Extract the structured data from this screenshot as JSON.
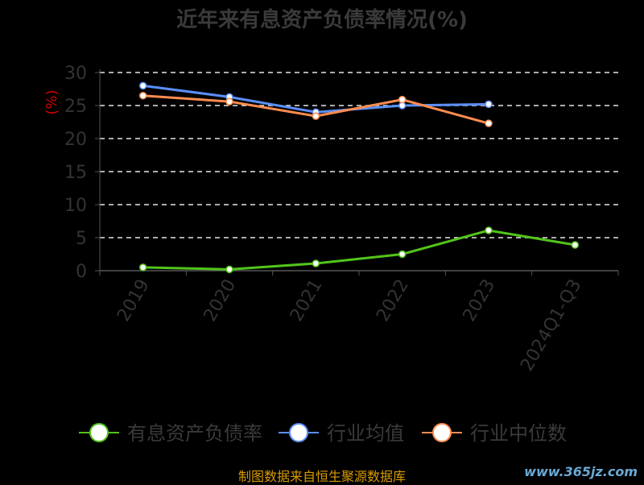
{
  "chart_data": {
    "type": "line",
    "title": "近年来有息资产负债率情况(%)",
    "ylabel": "(%)",
    "ylim": [
      0,
      30
    ],
    "yticks": [
      0,
      5,
      10,
      15,
      20,
      25,
      30
    ],
    "grid": true,
    "legend_position": "bottom",
    "categories": [
      "2019",
      "2020",
      "2021",
      "2022",
      "2023",
      "2024Q1-Q3"
    ],
    "series": [
      {
        "name": "有息资产负债率",
        "color": "#52c41a",
        "values": [
          0.5,
          0.2,
          1.1,
          2.5,
          6.1,
          3.9
        ]
      },
      {
        "name": "行业均值",
        "color": "#5b8ff9",
        "values": [
          28.0,
          26.3,
          24.0,
          25.0,
          25.2,
          null
        ]
      },
      {
        "name": "行业中位数",
        "color": "#ff8c50",
        "values": [
          26.5,
          25.6,
          23.4,
          25.9,
          22.3,
          null
        ]
      }
    ]
  },
  "footer": "制图数据来自恒生聚源数据库",
  "watermark": "www.365jz.com"
}
